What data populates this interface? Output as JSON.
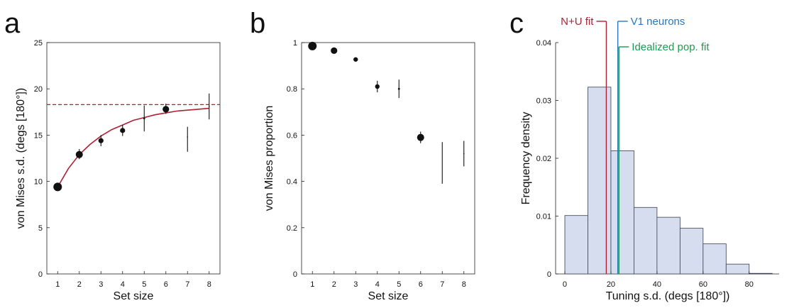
{
  "colors": {
    "fit_line": "#b02035",
    "v1_line": "#2a77bb",
    "pop_line": "#1f9a4f",
    "hist_fill": "#d5ddef",
    "hist_edge": "#3a3f52",
    "marker": "#111111"
  },
  "chart_data": [
    {
      "panel": "a",
      "type": "scatter",
      "xlabel": "Set size",
      "ylabel": "von Mises s.d. (degs [180°])",
      "xlim": [
        0.5,
        8.5
      ],
      "ylim": [
        0,
        25
      ],
      "xticks": [
        1,
        2,
        3,
        4,
        5,
        6,
        7,
        8
      ],
      "yticks": [
        0,
        5,
        10,
        15,
        20,
        25
      ],
      "points": [
        {
          "x": 1,
          "y": 9.4,
          "err_low": 9.1,
          "err_high": 9.7,
          "marker_size": 6
        },
        {
          "x": 2,
          "y": 12.9,
          "err_low": 12.4,
          "err_high": 13.5,
          "marker_size": 5
        },
        {
          "x": 3,
          "y": 14.4,
          "err_low": 13.8,
          "err_high": 15.0,
          "marker_size": 3.6
        },
        {
          "x": 4,
          "y": 15.5,
          "err_low": 14.9,
          "err_high": 16.1,
          "marker_size": 3.6
        },
        {
          "x": 5,
          "y": 16.8,
          "err_low": 15.4,
          "err_high": 18.2,
          "marker_size": 1.4
        },
        {
          "x": 6,
          "y": 17.8,
          "err_low": 17.3,
          "err_high": 18.4,
          "marker_size": 4.6
        },
        {
          "x": 7,
          "y": 14.8,
          "err_low": 13.2,
          "err_high": 15.9,
          "marker_size": 0.8
        },
        {
          "x": 8,
          "y": 18.1,
          "err_low": 16.7,
          "err_high": 19.5,
          "marker_size": 0.8
        }
      ],
      "fit_curve": {
        "x": [
          1,
          1.5,
          2,
          2.5,
          3,
          3.5,
          4,
          4.5,
          5,
          5.5,
          6,
          6.5,
          7,
          7.5,
          8
        ],
        "y": [
          9.4,
          11.4,
          12.9,
          14.0,
          14.9,
          15.6,
          16.1,
          16.6,
          16.9,
          17.2,
          17.4,
          17.6,
          17.7,
          17.8,
          17.9
        ]
      },
      "asymptote": 18.3
    },
    {
      "panel": "b",
      "type": "scatter",
      "xlabel": "Set size",
      "ylabel": "von Mises proportion",
      "xlim": [
        0.5,
        8.5
      ],
      "ylim": [
        0,
        1
      ],
      "xticks": [
        1,
        2,
        3,
        4,
        5,
        6,
        7,
        8
      ],
      "yticks": [
        0,
        0.2,
        0.4,
        0.6,
        0.8,
        1
      ],
      "ytick_labels": [
        "0",
        "0.2",
        "0.4",
        "0.6",
        "0.8",
        "1"
      ],
      "points": [
        {
          "x": 1,
          "y": 0.985,
          "err_low": 0.98,
          "err_high": 0.99,
          "marker_size": 6
        },
        {
          "x": 2,
          "y": 0.965,
          "err_low": 0.96,
          "err_high": 0.97,
          "marker_size": 4.6
        },
        {
          "x": 3,
          "y": 0.927,
          "err_low": 0.92,
          "err_high": 0.934,
          "marker_size": 3.2
        },
        {
          "x": 4,
          "y": 0.81,
          "err_low": 0.785,
          "err_high": 0.835,
          "marker_size": 3.2
        },
        {
          "x": 5,
          "y": 0.8,
          "err_low": 0.76,
          "err_high": 0.84,
          "marker_size": 1.4
        },
        {
          "x": 6,
          "y": 0.59,
          "err_low": 0.565,
          "err_high": 0.615,
          "marker_size": 5
        },
        {
          "x": 7,
          "y": 0.49,
          "err_low": 0.39,
          "err_high": 0.57,
          "marker_size": 0
        },
        {
          "x": 8,
          "y": 0.52,
          "err_low": 0.465,
          "err_high": 0.575,
          "marker_size": 0.8
        }
      ]
    },
    {
      "panel": "c",
      "type": "bar",
      "xlabel": "Tuning s.d. (degs [180°])",
      "ylabel": "Frequency density",
      "xlim": [
        -4,
        93
      ],
      "ylim": [
        0,
        0.04
      ],
      "xticks": [
        0,
        20,
        40,
        60,
        80
      ],
      "yticks": [
        0,
        0.01,
        0.02,
        0.03,
        0.04
      ],
      "ytick_labels": [
        "0",
        "0.01",
        "0.02",
        "0.03",
        "0.04"
      ],
      "bin_edges": [
        0,
        10,
        20,
        30,
        40,
        50,
        60,
        70,
        80,
        90
      ],
      "values": [
        0.0101,
        0.0323,
        0.0213,
        0.0115,
        0.0098,
        0.0079,
        0.0052,
        0.0017,
        0.0001
      ],
      "annotations": [
        {
          "label": "N+U fit",
          "x": 18.0,
          "color": "#b02035",
          "side": "left"
        },
        {
          "label": "V1 neurons",
          "x": 23.0,
          "color": "#2a77bb",
          "side": "right"
        },
        {
          "label": "Idealized pop. fit",
          "x": 23.5,
          "color": "#1f9a4f",
          "side": "right"
        }
      ]
    }
  ],
  "panels": {
    "a": {
      "letter": "a"
    },
    "b": {
      "letter": "b"
    },
    "c": {
      "letter": "c"
    }
  }
}
